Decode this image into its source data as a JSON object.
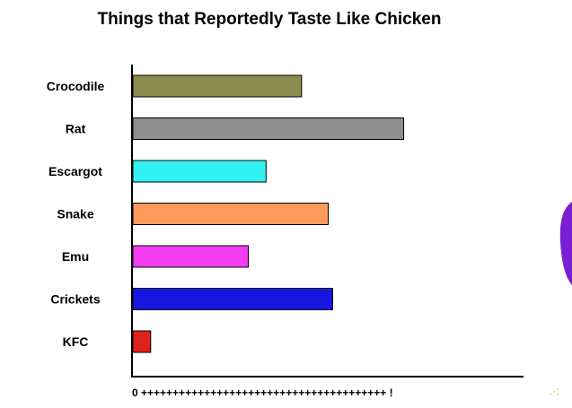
{
  "chart_data": {
    "type": "bar",
    "orientation": "horizontal",
    "title": "Things that Reportedly Taste Like Chicken",
    "categories": [
      "Crocodile",
      "Rat",
      "Escargot",
      "Snake",
      "Emu",
      "Crickets",
      "KFC"
    ],
    "values": [
      38,
      61,
      30,
      44,
      26,
      45,
      4
    ],
    "colors": [
      "#8c8c4e",
      "#8f8f8f",
      "#33f0f2",
      "#ff9a5c",
      "#f23cf2",
      "#1616e0",
      "#e0221c"
    ],
    "xlim": [
      0,
      88
    ],
    "x_axis_text": "0 +++++++++++++++++++++++++++++++++++++++ !",
    "grid": false,
    "legend": "none"
  }
}
